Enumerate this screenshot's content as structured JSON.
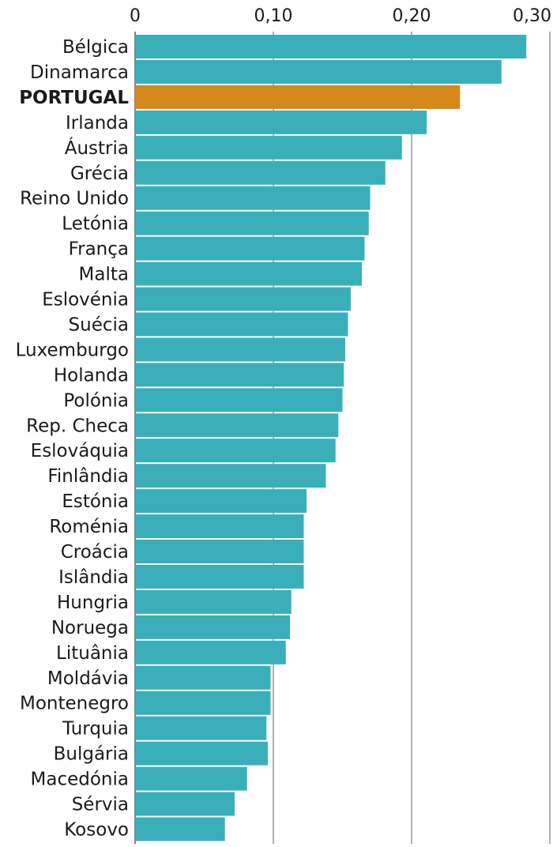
{
  "chart_data": {
    "type": "bar",
    "orientation": "horizontal",
    "title": "",
    "xlabel": "",
    "ylabel": "",
    "xlim": [
      0,
      0.3
    ],
    "x_ticks": [
      0,
      0.1,
      0.2,
      0.3
    ],
    "x_tick_labels": [
      "0",
      "0,10",
      "0,20",
      "0,30"
    ],
    "x_axis_position": "top",
    "grid": true,
    "legend": "none",
    "highlight": "PORTUGAL",
    "colors": {
      "bar": "#3aafb9",
      "highlight": "#d4891a",
      "grid": "#555555"
    },
    "categories": [
      "Bélgica",
      "Dinamarca",
      "PORTUGAL",
      "Irlanda",
      "Áustria",
      "Grécia",
      "Reino Unido",
      "Letónia",
      "França",
      "Malta",
      "Eslovénia",
      "Suécia",
      "Luxemburgo",
      "Holanda",
      "Polónia",
      "Rep. Checa",
      "Eslováquia",
      "Finlândia",
      "Estónia",
      "Roménia",
      "Croácia",
      "Islândia",
      "Hungria",
      "Noruega",
      "Lituânia",
      "Moldávia",
      "Montenegro",
      "Turquia",
      "Bulgária",
      "Macedónia",
      "Sérvia",
      "Kosovo"
    ],
    "values": [
      0.283,
      0.265,
      0.235,
      0.211,
      0.193,
      0.181,
      0.17,
      0.169,
      0.166,
      0.164,
      0.156,
      0.154,
      0.152,
      0.151,
      0.15,
      0.147,
      0.145,
      0.138,
      0.124,
      0.122,
      0.122,
      0.122,
      0.113,
      0.112,
      0.109,
      0.098,
      0.098,
      0.095,
      0.096,
      0.081,
      0.072,
      0.065
    ]
  }
}
